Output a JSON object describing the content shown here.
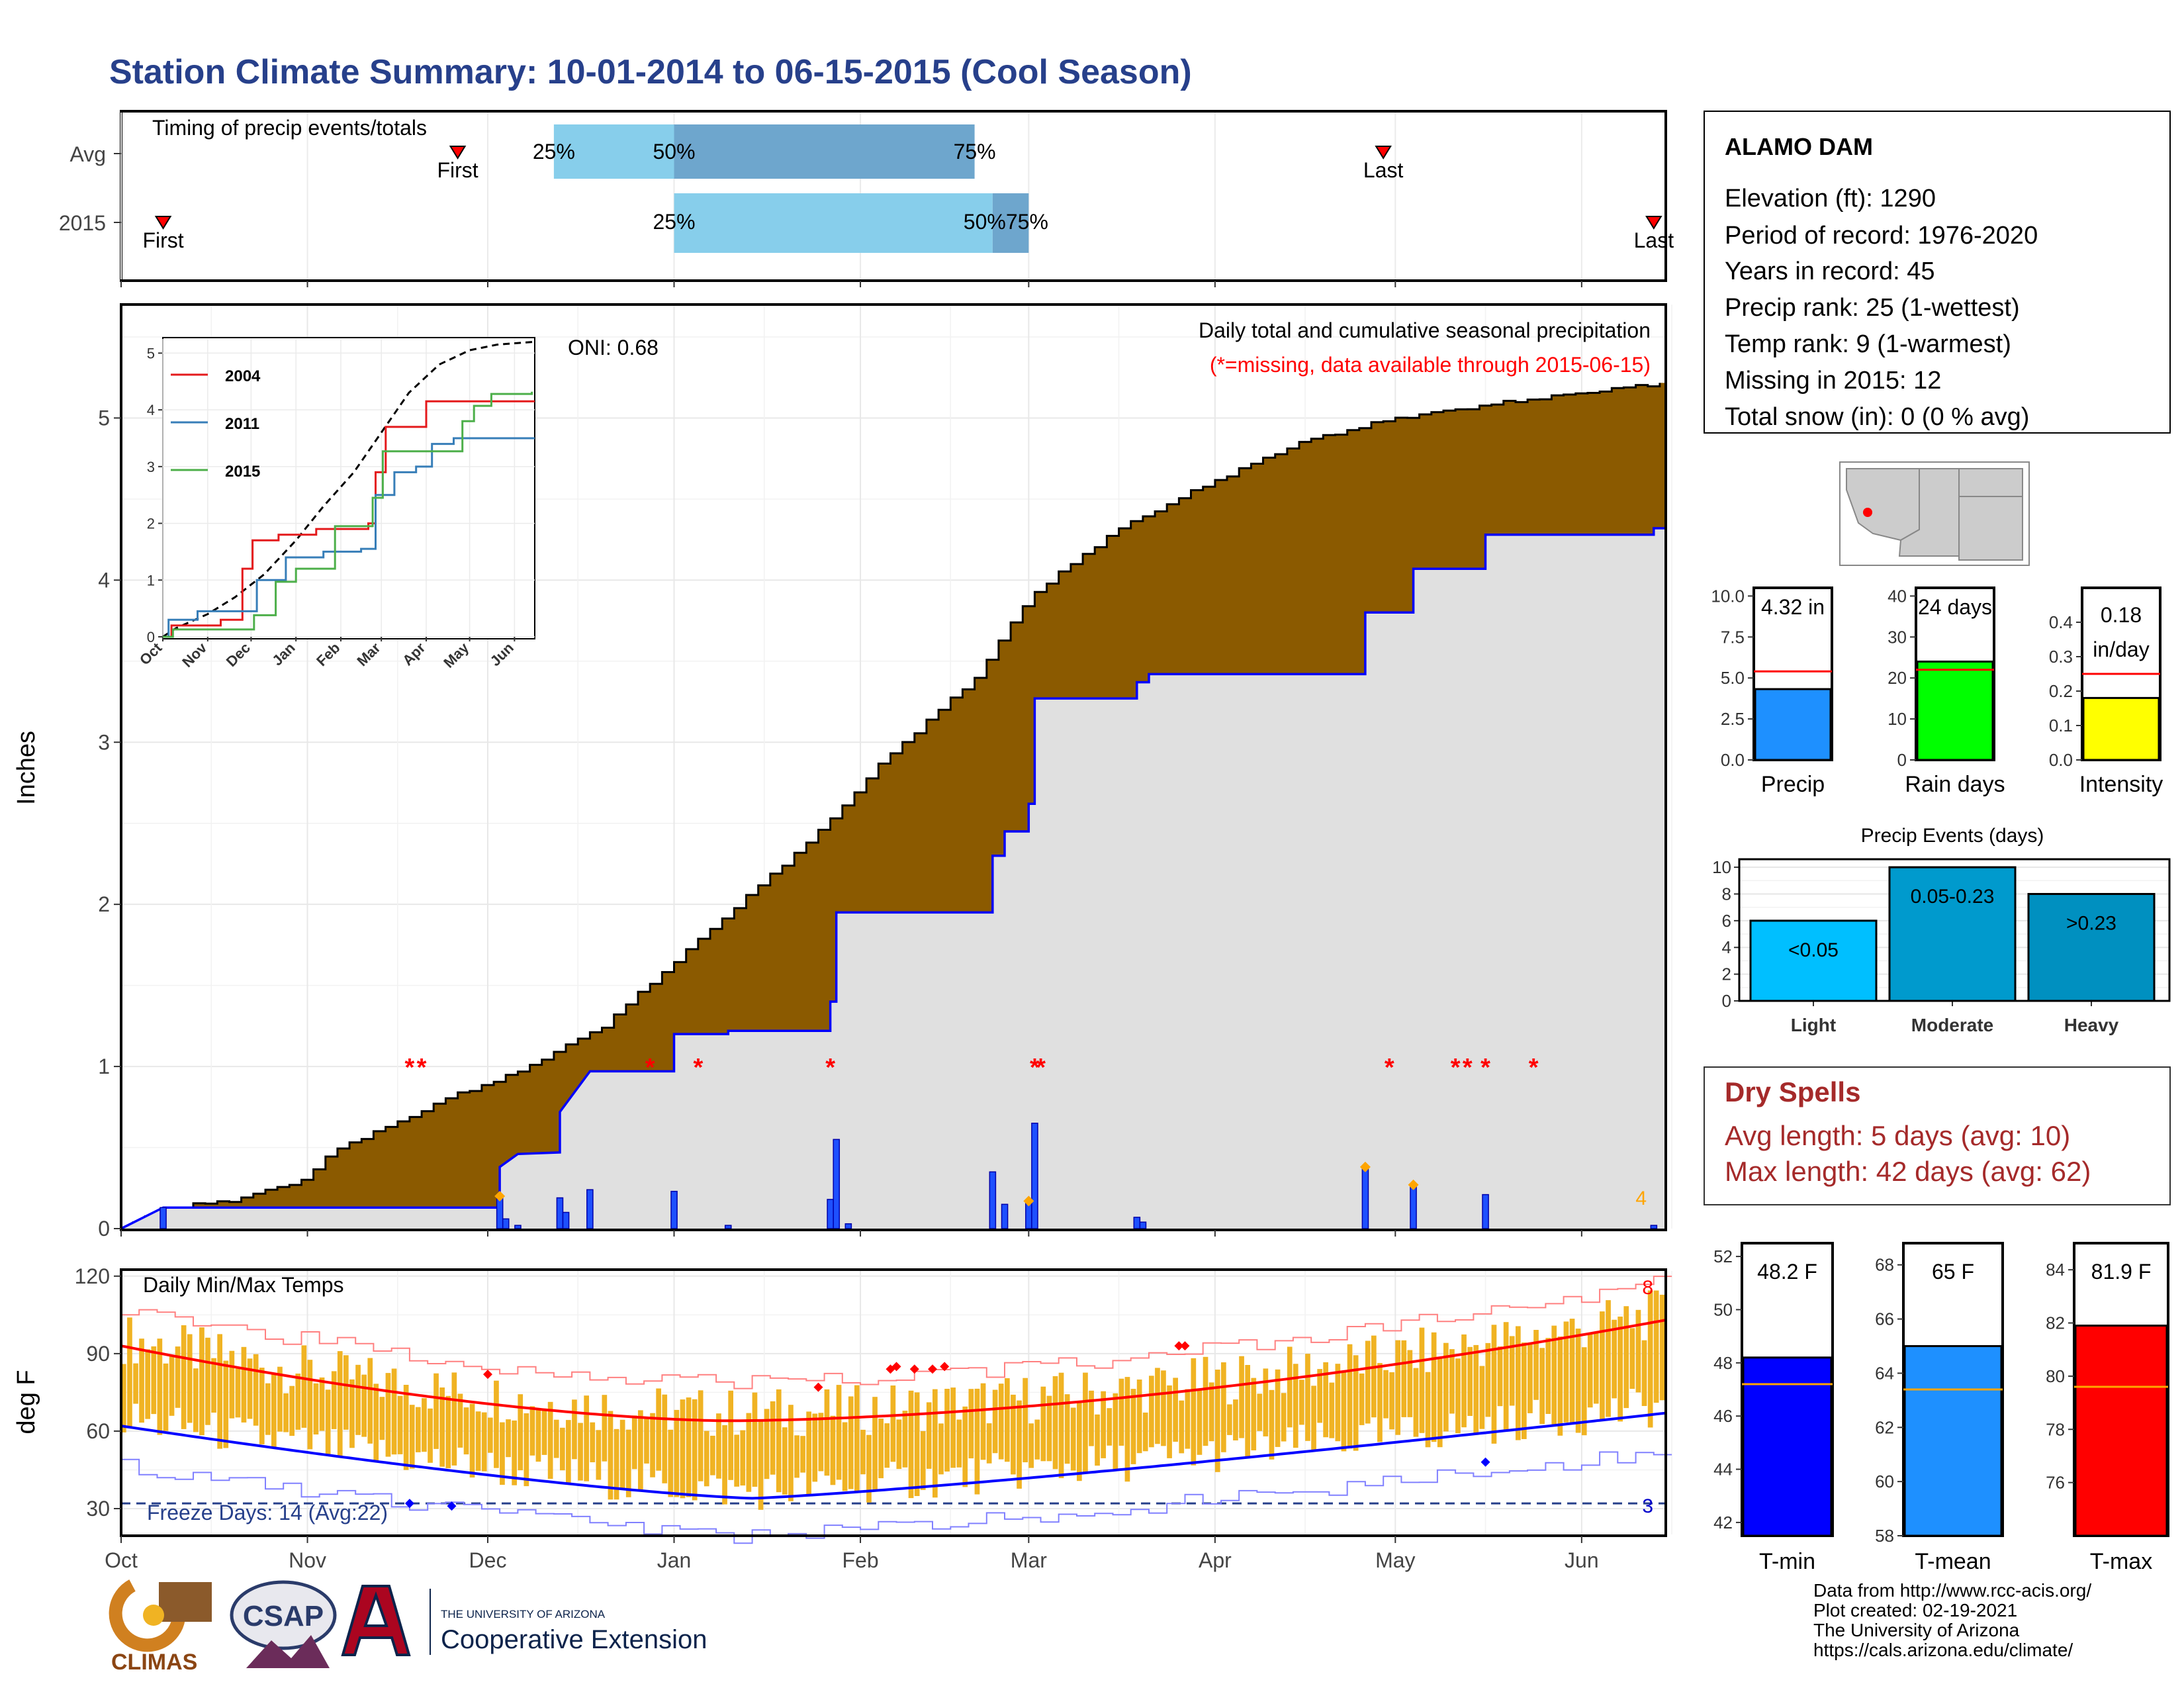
{
  "title": "Station Climate Summary: 10-01-2014 to 06-15-2015 (Cool Season)",
  "months": [
    "Oct",
    "Nov",
    "Dec",
    "Jan",
    "Feb",
    "Mar",
    "Apr",
    "May",
    "Jun"
  ],
  "colors": {
    "title": "#27408b",
    "cum_avg": "#8b5a00",
    "cum_2015": "#e0e0e0",
    "line_2015": "#0000ff",
    "missing": "#ff0000",
    "temp_bar": "#f0b323",
    "normal_max": "#ff0000",
    "normal_min": "#0000ff",
    "record": "#ff8080"
  },
  "timing": {
    "title": "Timing of precip events/totals",
    "rows": [
      "Avg",
      "2015"
    ],
    "avg": {
      "first": "Nov 26",
      "pct25": "Dec 12",
      "pct50": "Jan 01",
      "pct75": "Feb 20",
      "last": "Apr 29",
      "first_label": "First",
      "last_label": "Last"
    },
    "y2015": {
      "first": "Oct 08",
      "pct25": "Jan 01",
      "pct50": "Feb 23",
      "pct75": "Mar 01",
      "last": "Jun 13",
      "first_label": "First",
      "last_label": "Last"
    },
    "labels": {
      "p25": "25%",
      "p50": "50%",
      "p75": "75%",
      "p5075": "50%75%"
    }
  },
  "precip_chart": {
    "ylabel": "Inches",
    "oni": "ONI: 0.68",
    "note1": "Daily total and cumulative seasonal precipitation",
    "note2": "(*=missing, data available through 2015-06-15)",
    "yticks": [
      "0",
      "1",
      "2",
      "3",
      "4",
      "5"
    ],
    "ylim": [
      0,
      5.7
    ],
    "corner_count": "4",
    "missing_days": [
      "Nov 18",
      "Nov 20",
      "Dec 28",
      "Jan 05",
      "Jan 27",
      "Mar 02",
      "Mar 03",
      "Apr 30",
      "May 11",
      "May 13",
      "May 16",
      "May 24"
    ]
  },
  "inset": {
    "yticks": [
      "0",
      "1",
      "2",
      "3",
      "4",
      "5"
    ],
    "months": [
      "Oct",
      "Nov",
      "Dec",
      "Jan",
      "Feb",
      "Mar",
      "Apr",
      "May",
      "Jun"
    ],
    "legend": [
      {
        "name": "2004",
        "color": "#e41a1c"
      },
      {
        "name": "2011",
        "color": "#377eb8"
      },
      {
        "name": "2015",
        "color": "#4daf4a"
      }
    ]
  },
  "temp_chart": {
    "ylabel": "deg F",
    "title": "Daily Min/Max Temps",
    "yticks": [
      "30",
      "60",
      "90",
      "120"
    ],
    "ylim": [
      20,
      122
    ],
    "freeze": "Freeze Days: 14 (Avg:22)",
    "record_count": "8",
    "freeze_count": "3"
  },
  "station": {
    "name": "ALAMO DAM",
    "lines": [
      "Elevation (ft): 1290",
      "Period of record: 1976-2020",
      "Years in record: 45",
      "Precip rank: 25 (1-wettest)",
      "Temp rank: 9 (1-warmest)",
      "Missing in 2015: 12",
      "Total snow (in): 0 (0 % avg)"
    ]
  },
  "mini_bars": [
    {
      "label": "Precip",
      "value": 4.32,
      "value_text": "4.32 in",
      "avg": 5.4,
      "ymax": 10.5,
      "ticks": [
        "0.0",
        "2.5",
        "5.0",
        "7.5",
        "10.0"
      ],
      "tick_vals": [
        0,
        2.5,
        5,
        7.5,
        10
      ],
      "color": "#1e90ff"
    },
    {
      "label": "Rain days",
      "value": 24,
      "value_text": "24 days",
      "avg": 22,
      "ymax": 42,
      "ticks": [
        "0",
        "10",
        "20",
        "30",
        "40"
      ],
      "tick_vals": [
        0,
        10,
        20,
        30,
        40
      ],
      "color": "#00ff00"
    },
    {
      "label": "Intensity",
      "value": 0.18,
      "value_text": "0.18",
      "value_text2": "in/day",
      "avg": 0.25,
      "ymax": 0.5,
      "ticks": [
        "0.0",
        "0.1",
        "0.2",
        "0.3",
        "0.4"
      ],
      "tick_vals": [
        0,
        0.1,
        0.2,
        0.3,
        0.4
      ],
      "color": "#ffff00"
    }
  ],
  "events": {
    "title": "Precip Events (days)",
    "ticks": [
      "0",
      "2",
      "4",
      "6",
      "8",
      "10"
    ],
    "categories": [
      "Light",
      "Moderate",
      "Heavy"
    ],
    "values": [
      6,
      10,
      8
    ],
    "labels": [
      "<0.05",
      "0.05-0.23",
      ">0.23"
    ],
    "colors": [
      "#00bfff",
      "#009acd",
      "#0090c0"
    ]
  },
  "dry": {
    "title": "Dry Spells",
    "line1": "Avg length: 5 days (avg: 10)",
    "line2": "Max length: 42 days (avg: 62)"
  },
  "temp_bars": [
    {
      "label": "T-min",
      "value": 48.2,
      "value_text": "48.2 F",
      "avg": 47.2,
      "ymin": 41.5,
      "ymax": 52.5,
      "ticks": [
        "42",
        "44",
        "46",
        "48",
        "50",
        "52"
      ],
      "tick_vals": [
        42,
        44,
        46,
        48,
        50,
        52
      ],
      "color": "#0000ff"
    },
    {
      "label": "T-mean",
      "value": 65,
      "value_text": "65 F",
      "avg": 63.4,
      "ymin": 58,
      "ymax": 68.8,
      "ticks": [
        "58",
        "60",
        "62",
        "64",
        "66",
        "68"
      ],
      "tick_vals": [
        58,
        60,
        62,
        64,
        66,
        68
      ],
      "color": "#1e90ff"
    },
    {
      "label": "T-max",
      "value": 81.9,
      "value_text": "81.9 F",
      "avg": 79.6,
      "ymin": 74,
      "ymax": 85,
      "ticks": [
        "76",
        "78",
        "80",
        "82",
        "84"
      ],
      "tick_vals": [
        76,
        78,
        80,
        82,
        84
      ],
      "color": "#ff0000"
    }
  ],
  "footer": {
    "lines": [
      "Data from http://www.rcc-acis.org/",
      "Plot created: 02-19-2021",
      "The University of Arizona",
      "https://cals.arizona.edu/climate/"
    ],
    "logo1": "CLIMAS",
    "logo2": "CSAP",
    "logo3_small": "THE UNIVERSITY OF ARIZONA",
    "logo3_big": "Cooperative Extension"
  }
}
